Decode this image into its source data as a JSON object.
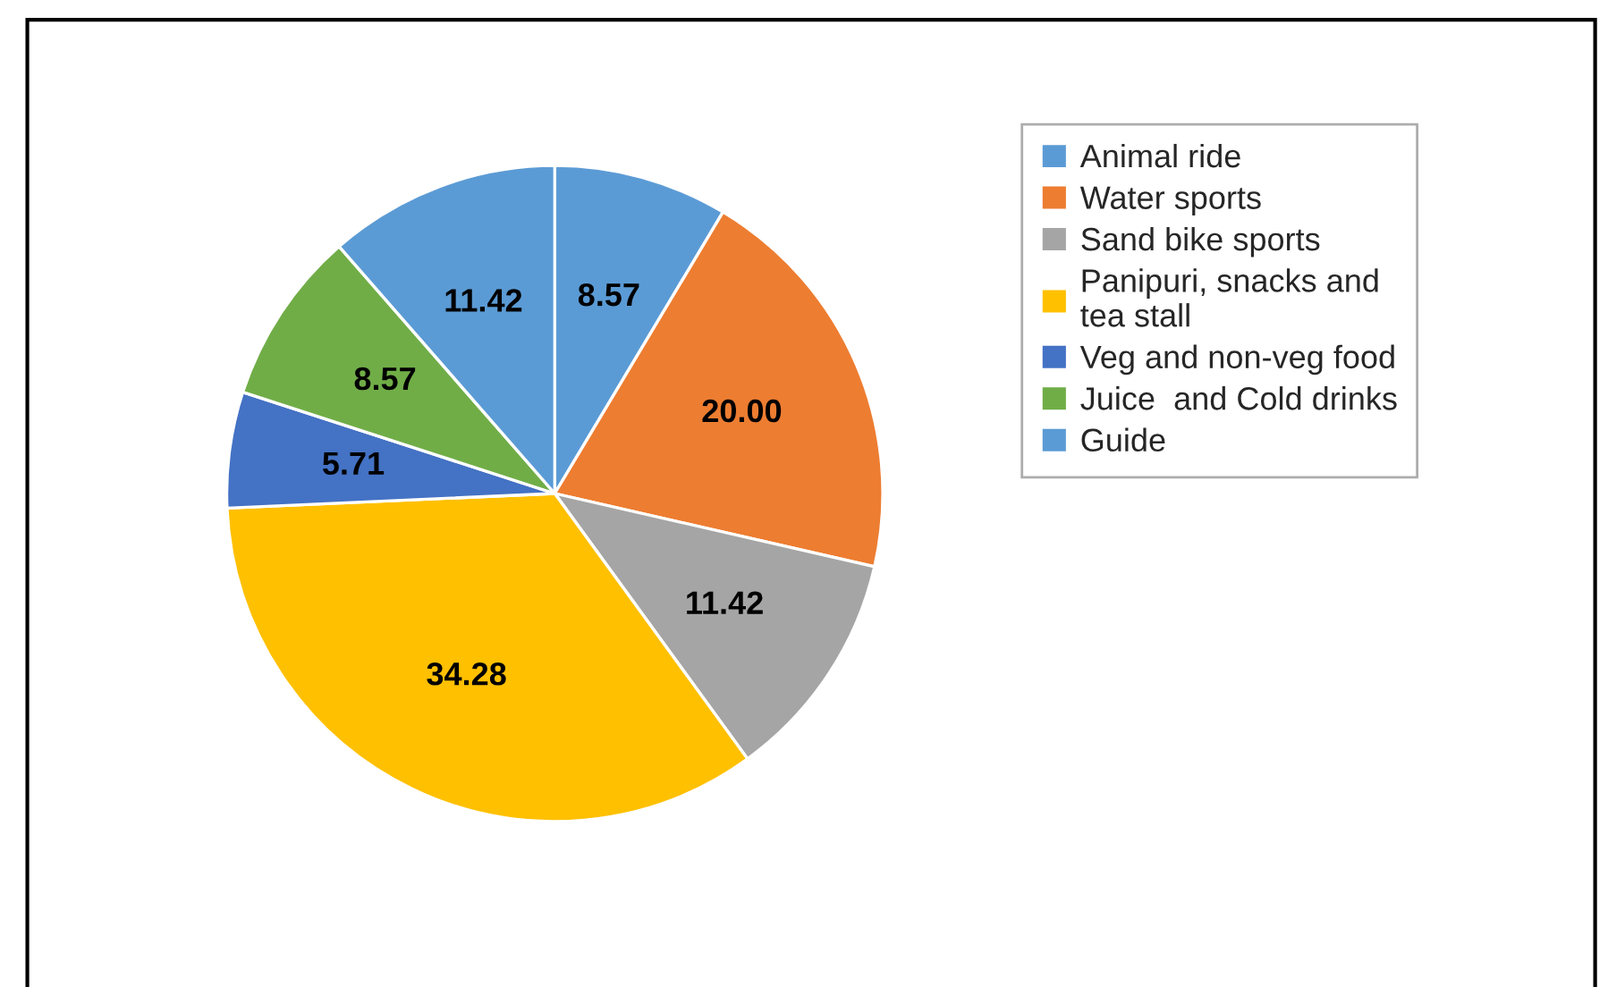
{
  "chart_data": {
    "type": "pie",
    "categories": [
      "Animal ride",
      "Water sports",
      "Sand bike sports",
      "Panipuri, snacks and\ntea stall",
      "Veg and non-veg food",
      "Juice  and Cold drinks",
      "Guide"
    ],
    "values": [
      8.57,
      20.0,
      11.42,
      34.28,
      5.71,
      8.57,
      11.42
    ],
    "value_labels": [
      "8.57",
      "20.00",
      "11.42",
      "34.28",
      "5.71",
      "8.57",
      "11.42"
    ],
    "colors": [
      "#5b9bd5",
      "#ed7d31",
      "#a5a5a5",
      "#ffc000",
      "#4472c4",
      "#70ad47",
      "#5b9bd5"
    ],
    "legend": "right"
  }
}
